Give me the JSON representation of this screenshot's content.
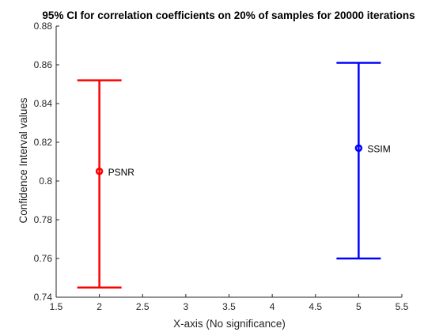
{
  "chart_data": {
    "type": "errorbar",
    "title": "95% CI for correlation coefficients on 20% of samples for 20000 iterations",
    "xlabel": "X-axis (No significance)",
    "ylabel": "Confidence Interval values",
    "xlim": [
      1.5,
      5.5
    ],
    "ylim": [
      0.74,
      0.88
    ],
    "xticks": [
      1.5,
      2,
      2.5,
      3,
      3.5,
      4,
      4.5,
      5,
      5.5
    ],
    "xtick_labels": [
      "1.5",
      "2",
      "2.5",
      "3",
      "3.5",
      "4",
      "4.5",
      "5",
      "5.5"
    ],
    "yticks": [
      0.74,
      0.76,
      0.78,
      0.8,
      0.82,
      0.84,
      0.86,
      0.88
    ],
    "ytick_labels": [
      "0.74",
      "0.76",
      "0.78",
      "0.8",
      "0.82",
      "0.84",
      "0.86",
      "0.88"
    ],
    "grid": false,
    "box": false,
    "series": [
      {
        "x": 2,
        "y": 0.805,
        "lower": 0.745,
        "upper": 0.852,
        "color": "#ff0000",
        "marker": "circle",
        "annotation": "PSNR"
      },
      {
        "x": 5,
        "y": 0.817,
        "lower": 0.76,
        "upper": 0.861,
        "color": "#0000ff",
        "marker": "circle",
        "annotation": "SSIM"
      }
    ]
  }
}
